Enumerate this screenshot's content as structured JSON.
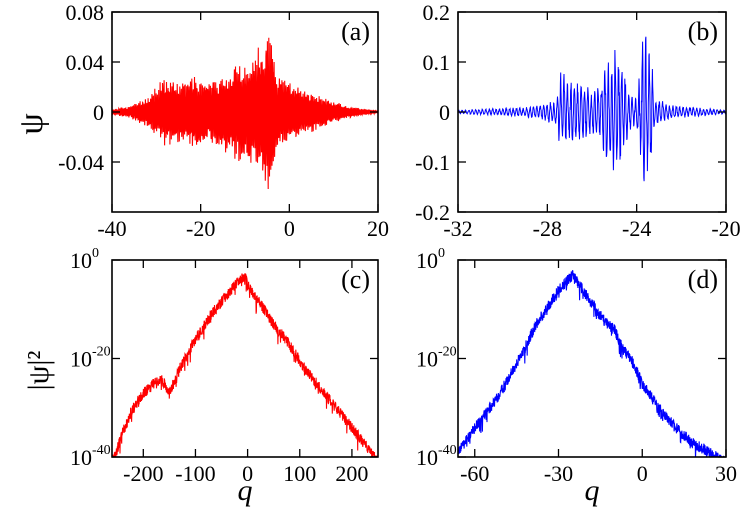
{
  "chart_data": [
    {
      "id": "a",
      "type": "line",
      "panel_label": "(a)",
      "ylabel": "ψ",
      "xlabel": "",
      "xlim": [
        -40,
        20
      ],
      "ylim": [
        -0.08,
        0.08
      ],
      "xticks": [
        {
          "v": -40,
          "t": "-40"
        },
        {
          "v": -20,
          "t": "-20"
        },
        {
          "v": 0,
          "t": "0"
        },
        {
          "v": 20,
          "t": "20"
        }
      ],
      "yticks": [
        {
          "v": -0.04,
          "t": "-0.04"
        },
        {
          "v": 0,
          "t": "0"
        },
        {
          "v": 0.04,
          "t": "0.04"
        },
        {
          "v": 0.08,
          "t": "0.08"
        }
      ],
      "color": "#ff0000",
      "envelope": [
        [
          -40,
          0.002
        ],
        [
          -36,
          0.005
        ],
        [
          -32,
          0.012
        ],
        [
          -30,
          0.022
        ],
        [
          -28,
          0.028
        ],
        [
          -26,
          0.026
        ],
        [
          -24,
          0.025
        ],
        [
          -22,
          0.03
        ],
        [
          -20,
          0.027
        ],
        [
          -18,
          0.025
        ],
        [
          -16,
          0.028
        ],
        [
          -14,
          0.034
        ],
        [
          -12,
          0.04
        ],
        [
          -10,
          0.04
        ],
        [
          -8,
          0.045
        ],
        [
          -7,
          0.06
        ],
        [
          -6,
          0.05
        ],
        [
          -5,
          0.068
        ],
        [
          -4,
          0.058
        ],
        [
          -3,
          0.04
        ],
        [
          -2,
          0.03
        ],
        [
          0,
          0.025
        ],
        [
          4,
          0.018
        ],
        [
          8,
          0.012
        ],
        [
          12,
          0.006
        ],
        [
          16,
          0.003
        ],
        [
          20,
          0.001
        ]
      ]
    },
    {
      "id": "b",
      "type": "line",
      "panel_label": "(b)",
      "ylabel": "",
      "xlabel": "",
      "xlim": [
        -32,
        -20
      ],
      "ylim": [
        -0.2,
        0.2
      ],
      "xticks": [
        {
          "v": -32,
          "t": "-32"
        },
        {
          "v": -28,
          "t": "-28"
        },
        {
          "v": -24,
          "t": "-24"
        },
        {
          "v": -20,
          "t": "-20"
        }
      ],
      "yticks": [
        {
          "v": -0.2,
          "t": "-0.2"
        },
        {
          "v": -0.1,
          "t": "-0.1"
        },
        {
          "v": 0,
          "t": "0"
        },
        {
          "v": 0.1,
          "t": "0.1"
        },
        {
          "v": 0.2,
          "t": "0.2"
        }
      ],
      "color": "#0000ff",
      "envelope": [
        [
          -32,
          0.004
        ],
        [
          -31,
          0.006
        ],
        [
          -30,
          0.008
        ],
        [
          -29,
          0.01
        ],
        [
          -28.5,
          0.014
        ],
        [
          -28,
          0.02
        ],
        [
          -27.6,
          0.025
        ],
        [
          -27.4,
          0.08
        ],
        [
          -27,
          0.075
        ],
        [
          -26.5,
          0.06
        ],
        [
          -26,
          0.045
        ],
        [
          -25.6,
          0.06
        ],
        [
          -25.4,
          0.11
        ],
        [
          -25,
          0.13
        ],
        [
          -24.6,
          0.12
        ],
        [
          -24.3,
          0.04
        ],
        [
          -24.0,
          0.03
        ],
        [
          -23.7,
          0.16
        ],
        [
          -23.4,
          0.15
        ],
        [
          -23.2,
          0.03
        ],
        [
          -22.5,
          0.015
        ],
        [
          -22,
          0.012
        ],
        [
          -21,
          0.008
        ],
        [
          -20,
          0.004
        ]
      ]
    },
    {
      "id": "c",
      "type": "line",
      "panel_label": "(c)",
      "ylabel": "|ψ|²",
      "xlabel": "q",
      "yscale": "log",
      "xlim": [
        -260,
        250
      ],
      "ylim": [
        -40,
        0
      ],
      "xticks": [
        {
          "v": -200,
          "t": "-200"
        },
        {
          "v": -100,
          "t": "-100"
        },
        {
          "v": 0,
          "t": "0"
        },
        {
          "v": 100,
          "t": "100"
        },
        {
          "v": 200,
          "t": "200"
        }
      ],
      "yticks": [
        {
          "v": -40,
          "base": "10",
          "exp": "-40"
        },
        {
          "v": -20,
          "base": "10",
          "exp": "-20"
        },
        {
          "v": 0,
          "base": "10",
          "exp": "0"
        }
      ],
      "color": "#ff0000",
      "trend": [
        [
          -255,
          -39
        ],
        [
          -240,
          -34
        ],
        [
          -220,
          -29
        ],
        [
          -200,
          -26
        ],
        [
          -180,
          -24
        ],
        [
          -165,
          -23
        ],
        [
          -150,
          -26
        ],
        [
          -130,
          -21
        ],
        [
          -100,
          -15
        ],
        [
          -70,
          -10
        ],
        [
          -40,
          -6
        ],
        [
          -15,
          -3
        ],
        [
          -5,
          -2
        ],
        [
          0,
          -4
        ],
        [
          20,
          -7
        ],
        [
          50,
          -12
        ],
        [
          80,
          -16
        ],
        [
          110,
          -21
        ],
        [
          140,
          -25
        ],
        [
          170,
          -29
        ],
        [
          200,
          -33
        ],
        [
          230,
          -37
        ],
        [
          250,
          -40
        ]
      ]
    },
    {
      "id": "d",
      "type": "line",
      "panel_label": "(d)",
      "ylabel": "",
      "xlabel": "q",
      "yscale": "log",
      "xlim": [
        -66,
        30
      ],
      "ylim": [
        -40,
        0
      ],
      "xticks": [
        {
          "v": -60,
          "t": "-60"
        },
        {
          "v": -30,
          "t": "-30"
        },
        {
          "v": 0,
          "t": "0"
        },
        {
          "v": 30,
          "t": "30"
        }
      ],
      "yticks": [
        {
          "v": -40,
          "base": "10",
          "exp": "-40"
        },
        {
          "v": -20,
          "base": "10",
          "exp": "-20"
        },
        {
          "v": 0,
          "base": "10",
          "exp": "0"
        }
      ],
      "color": "#0000ff",
      "trend": [
        [
          -66,
          -38
        ],
        [
          -60,
          -33
        ],
        [
          -52,
          -27
        ],
        [
          -45,
          -20
        ],
        [
          -38,
          -12
        ],
        [
          -30,
          -5
        ],
        [
          -25,
          -2
        ],
        [
          -20,
          -6
        ],
        [
          -14,
          -11
        ],
        [
          -10,
          -13
        ],
        [
          -7,
          -17
        ],
        [
          -4,
          -19
        ],
        [
          0,
          -24
        ],
        [
          6,
          -29
        ],
        [
          12,
          -33
        ],
        [
          18,
          -36
        ],
        [
          24,
          -38
        ],
        [
          30,
          -40
        ]
      ]
    }
  ]
}
